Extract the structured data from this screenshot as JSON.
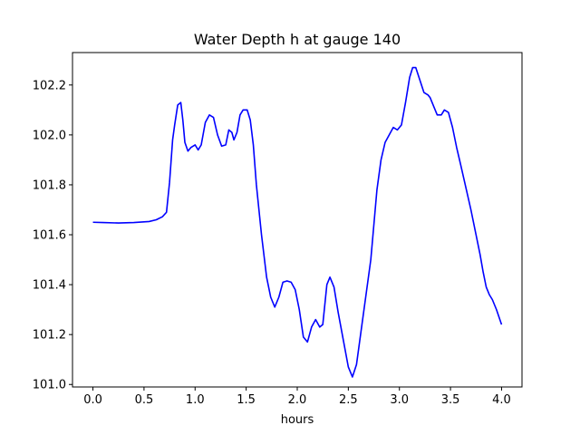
{
  "chart_data": {
    "type": "line",
    "title": "Water Depth h at gauge 140",
    "xlabel": "hours",
    "ylabel": "",
    "xlim": [
      -0.2,
      4.2
    ],
    "ylim": [
      100.99,
      102.33
    ],
    "xticks": [
      0.0,
      0.5,
      1.0,
      1.5,
      2.0,
      2.5,
      3.0,
      3.5,
      4.0
    ],
    "xtick_labels": [
      "0.0",
      "0.5",
      "1.0",
      "1.5",
      "2.0",
      "2.5",
      "3.0",
      "3.5",
      "4.0"
    ],
    "yticks": [
      101.0,
      101.2,
      101.4,
      101.6,
      101.8,
      102.0,
      102.2
    ],
    "ytick_labels": [
      "101.0",
      "101.2",
      "101.4",
      "101.6",
      "101.8",
      "102.0",
      "102.2"
    ],
    "grid": false,
    "color": "#0000ff",
    "series": [
      {
        "x": [
          0.0,
          0.1,
          0.25,
          0.4,
          0.55,
          0.62,
          0.68,
          0.72,
          0.75,
          0.78,
          0.8,
          0.83,
          0.86,
          0.88,
          0.9,
          0.93,
          0.96,
          1.0,
          1.03,
          1.06,
          1.1,
          1.14,
          1.18,
          1.22,
          1.26,
          1.3,
          1.33,
          1.36,
          1.38,
          1.41,
          1.44,
          1.47,
          1.51,
          1.54,
          1.57,
          1.6,
          1.65,
          1.7,
          1.74,
          1.78,
          1.82,
          1.86,
          1.9,
          1.94,
          1.98,
          2.02,
          2.06,
          2.1,
          2.14,
          2.18,
          2.22,
          2.25,
          2.29,
          2.32,
          2.36,
          2.4,
          2.45,
          2.5,
          2.54,
          2.58,
          2.62,
          2.66,
          2.72,
          2.78,
          2.82,
          2.86,
          2.9,
          2.94,
          2.98,
          3.02,
          3.06,
          3.1,
          3.13,
          3.16,
          3.2,
          3.24,
          3.28,
          3.3,
          3.34,
          3.37,
          3.41,
          3.44,
          3.48,
          3.52,
          3.56,
          3.6,
          3.65,
          3.7,
          3.75,
          3.79,
          3.82,
          3.85,
          3.88,
          3.91,
          3.95,
          4.0
        ],
        "y": [
          101.65,
          101.649,
          101.647,
          101.649,
          101.653,
          101.66,
          101.672,
          101.69,
          101.81,
          101.98,
          102.04,
          102.12,
          102.13,
          102.06,
          101.97,
          101.935,
          101.95,
          101.96,
          101.94,
          101.96,
          102.05,
          102.08,
          102.07,
          102.0,
          101.955,
          101.96,
          102.02,
          102.01,
          101.98,
          102.01,
          102.08,
          102.1,
          102.1,
          102.06,
          101.96,
          101.8,
          101.6,
          101.43,
          101.35,
          101.31,
          101.35,
          101.41,
          101.415,
          101.41,
          101.38,
          101.3,
          101.19,
          101.17,
          101.23,
          101.26,
          101.23,
          101.24,
          101.4,
          101.43,
          101.39,
          101.29,
          101.18,
          101.07,
          101.03,
          101.08,
          101.2,
          101.32,
          101.5,
          101.78,
          101.9,
          101.97,
          102.0,
          102.03,
          102.02,
          102.04,
          102.13,
          102.23,
          102.27,
          102.27,
          102.22,
          102.17,
          102.16,
          102.15,
          102.11,
          102.08,
          102.08,
          102.1,
          102.09,
          102.03,
          101.95,
          101.88,
          101.79,
          101.7,
          101.6,
          101.52,
          101.45,
          101.39,
          101.36,
          101.34,
          101.3,
          101.24
        ]
      }
    ]
  }
}
